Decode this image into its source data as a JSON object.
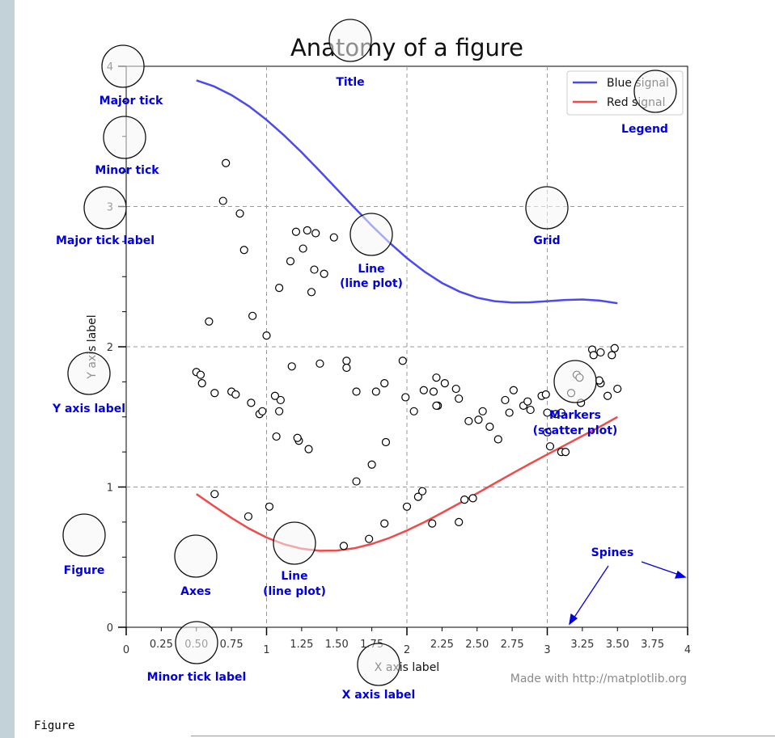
{
  "window": {
    "caption": "Figure"
  },
  "chart_data": {
    "type": "line",
    "title": "Anatomy of a figure",
    "xlabel": "X axis label",
    "ylabel": "Y axis label",
    "xlim": [
      0,
      4
    ],
    "ylim": [
      0,
      4
    ],
    "grid": true,
    "legend_position": "top-right",
    "x_major_ticks": [
      0,
      1,
      2,
      3,
      4
    ],
    "x_major_tick_labels": [
      "0",
      "1",
      "2",
      "3",
      "4"
    ],
    "x_minor_ticks": [
      0.25,
      0.5,
      0.75,
      1.25,
      1.5,
      1.75,
      2.25,
      2.5,
      2.75,
      3.25,
      3.5,
      3.75
    ],
    "x_minor_tick_labels": [
      "0.25",
      "0.50",
      "0.75",
      "1.25",
      "1.50",
      "1.75",
      "2.25",
      "2.50",
      "2.75",
      "3.25",
      "3.50",
      "3.75"
    ],
    "y_major_ticks": [
      0,
      1,
      2,
      3,
      4
    ],
    "y_major_tick_labels": [
      "0",
      "1",
      "2",
      "3",
      "4"
    ],
    "y_minor_ticks": [
      0.25,
      0.5,
      0.75,
      1.25,
      1.5,
      1.75,
      2.25,
      2.5,
      2.75,
      3.25,
      3.5,
      3.75
    ],
    "series": [
      {
        "name": "Blue signal",
        "color": "#4a4af0",
        "x": [
          0.5,
          0.625,
          0.75,
          0.875,
          1.0,
          1.125,
          1.25,
          1.375,
          1.5,
          1.625,
          1.75,
          1.875,
          2.0,
          2.125,
          2.25,
          2.375,
          2.5,
          2.625,
          2.75,
          2.875,
          3.0,
          3.125,
          3.25,
          3.375,
          3.5
        ],
        "values": [
          3.9,
          3.857,
          3.795,
          3.715,
          3.618,
          3.507,
          3.386,
          3.257,
          3.125,
          2.993,
          2.864,
          2.743,
          2.632,
          2.536,
          2.455,
          2.393,
          2.35,
          2.325,
          2.315,
          2.317,
          2.325,
          2.334,
          2.337,
          2.329,
          2.31
        ]
      },
      {
        "name": "Red signal",
        "color": "#f04a4a",
        "x": [
          0.5,
          0.625,
          0.75,
          0.875,
          1.0,
          1.125,
          1.25,
          1.375,
          1.5,
          1.625,
          1.75,
          1.875,
          2.0,
          2.125,
          2.25,
          2.375,
          2.5,
          2.625,
          2.75,
          2.875,
          3.0,
          3.125,
          3.25,
          3.375,
          3.5
        ],
        "values": [
          0.95,
          0.864,
          0.78,
          0.704,
          0.64,
          0.592,
          0.56,
          0.545,
          0.547,
          0.563,
          0.594,
          0.637,
          0.69,
          0.75,
          0.816,
          0.885,
          0.955,
          1.026,
          1.096,
          1.165,
          1.232,
          1.298,
          1.364,
          1.43,
          1.5
        ]
      }
    ],
    "scatter": {
      "name": "Markers",
      "x": [
        0.71,
        0.69,
        0.81,
        0.84,
        1.21,
        1.29,
        1.35,
        1.26,
        1.48,
        1.41,
        1.34,
        1.17,
        1.09,
        1.0,
        1.32,
        1.18,
        0.9,
        0.59,
        0.95,
        1.23,
        1.3,
        1.38,
        1.57,
        1.64,
        1.78,
        1.84,
        1.99,
        2.05,
        2.22,
        2.21,
        1.75,
        1.64,
        1.97,
        2.12,
        2.27,
        0.5,
        0.54,
        0.63,
        0.53,
        0.75,
        0.78,
        0.89,
        0.97,
        1.07,
        1.1,
        1.09,
        1.06,
        1.22,
        1.85,
        1.57,
        2.21,
        2.19,
        2.35,
        2.37,
        2.44,
        2.51,
        2.54,
        2.59,
        2.65,
        2.7,
        2.76,
        2.83,
        2.73,
        2.86,
        2.88,
        3.0,
        3.06,
        3.1,
        2.96,
        2.99,
        3.21,
        3.24,
        3.32,
        3.33,
        3.38,
        3.46,
        3.48,
        3.43,
        3.5,
        3.38,
        3.37,
        3.23,
        3.17,
        3.1,
        3.13,
        3.0,
        3.02,
        0.63,
        0.87,
        1.02,
        1.55,
        1.73,
        1.84,
        2.0,
        2.08,
        2.41,
        2.47,
        2.37,
        2.11,
        2.18
      ],
      "y": [
        3.31,
        3.04,
        2.95,
        2.69,
        2.82,
        2.83,
        2.81,
        2.7,
        2.78,
        2.52,
        2.55,
        2.61,
        2.42,
        2.08,
        2.39,
        1.86,
        2.22,
        2.18,
        1.52,
        1.33,
        1.27,
        1.88,
        1.9,
        1.68,
        1.68,
        1.74,
        1.64,
        1.54,
        1.58,
        1.58,
        1.16,
        1.04,
        1.9,
        1.69,
        1.74,
        1.82,
        1.74,
        1.67,
        1.8,
        1.68,
        1.66,
        1.6,
        1.54,
        1.36,
        1.62,
        1.54,
        1.65,
        1.35,
        1.32,
        1.85,
        1.78,
        1.68,
        1.7,
        1.63,
        1.47,
        1.48,
        1.54,
        1.43,
        1.34,
        1.62,
        1.69,
        1.58,
        1.53,
        1.61,
        1.55,
        1.53,
        1.52,
        1.53,
        1.65,
        1.66,
        1.8,
        1.6,
        1.98,
        1.94,
        1.96,
        1.94,
        1.99,
        1.65,
        1.7,
        1.74,
        1.76,
        1.78,
        1.67,
        1.25,
        1.25,
        1.39,
        1.29,
        0.95,
        0.79,
        0.86,
        0.58,
        0.63,
        0.74,
        0.86,
        0.93,
        0.91,
        0.92,
        0.75,
        0.97,
        0.74
      ]
    }
  },
  "legend": {
    "items": [
      {
        "label": "Blue signal",
        "color": "#4a4af0"
      },
      {
        "label": "Red signal",
        "color": "#f04a4a"
      }
    ]
  },
  "annotations": {
    "title": "Title",
    "major_tick": "Major tick",
    "minor_tick": "Minor tick",
    "major_tick_label": "Major tick label",
    "grid": "Grid",
    "line_1": "Line",
    "line_1_sub": "(line plot)",
    "line_2": "Line",
    "line_2_sub": "(line plot)",
    "legend": "Legend",
    "y_axis_label": "Y axis label",
    "markers": "Markers",
    "markers_sub": "(scatter plot)",
    "figure": "Figure",
    "axes": "Axes",
    "spines": "Spines",
    "minor_tick_label": "Minor tick label",
    "x_axis_label": "X axis label"
  },
  "credit": "Made with http://matplotlib.org"
}
